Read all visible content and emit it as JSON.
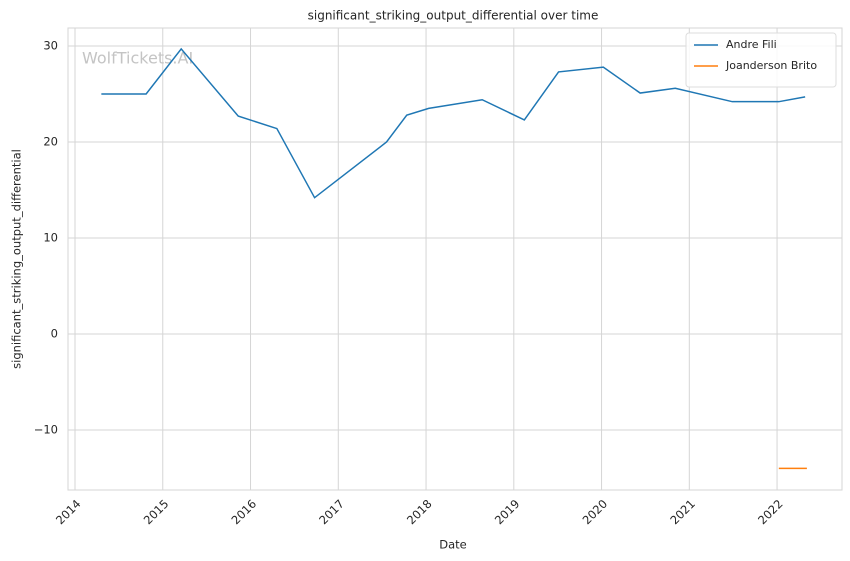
{
  "chart_data": {
    "type": "line",
    "title": "significant_striking_output_differential over time",
    "x_label": "Date",
    "y_label": "significant_striking_output_differential",
    "watermark": "WolfTickets.AI",
    "xlim": [
      2013.92,
      2022.74
    ],
    "xticks": [
      2014,
      2015,
      2016,
      2017,
      2018,
      2019,
      2020,
      2021,
      2022
    ],
    "ylim": [
      -16.25,
      31.875
    ],
    "yticks": [
      {
        "value": -10,
        "label": "−10"
      },
      0,
      10,
      20,
      30
    ],
    "grid": true,
    "legend": "upper right",
    "series": [
      {
        "name": "Andre Fili",
        "color": "#1f77b4",
        "x": [
          2014.3,
          2014.81,
          2015.21,
          2015.86,
          2016.3,
          2016.73,
          2017.55,
          2017.78,
          2018.03,
          2018.64,
          2019.12,
          2019.51,
          2020.02,
          2020.44,
          2020.84,
          2021.49,
          2022.02,
          2022.32
        ],
        "values": [
          25.0,
          25.0,
          29.7,
          22.7,
          21.4,
          14.2,
          20.0,
          22.8,
          23.5,
          24.4,
          22.3,
          27.3,
          27.8,
          25.1,
          25.6,
          24.2,
          24.2,
          24.7
        ]
      },
      {
        "name": "Joanderson Brito",
        "color": "#ff7f0e",
        "x": [
          2022.02,
          2022.34
        ],
        "values": [
          -14.0,
          -14.0
        ]
      }
    ]
  }
}
